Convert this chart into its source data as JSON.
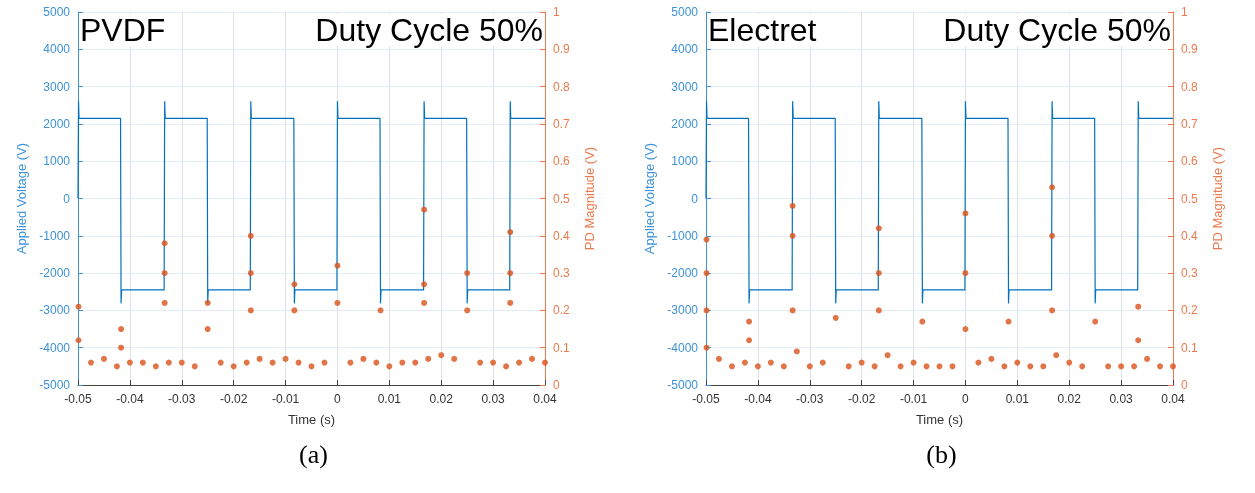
{
  "chart_data": [
    {
      "type": "line",
      "annotations": [
        "PVDF",
        "Duty Cycle 50%",
        "(a)"
      ],
      "xlabel": "Time (s)",
      "ylabel": "Applied Voltage (V)",
      "y2label": "PD Magnitude (V)",
      "xlim": [
        -0.05,
        0.04
      ],
      "xticks": [
        -0.05,
        -0.04,
        -0.03,
        -0.02,
        -0.01,
        0,
        0.01,
        0.02,
        0.03,
        0.04
      ],
      "ylim": [
        -5000,
        5000
      ],
      "yticks": [
        -5000,
        -4000,
        -3000,
        -2000,
        -1000,
        0,
        1000,
        2000,
        3000,
        4000,
        5000
      ],
      "y2lim": [
        0,
        1
      ],
      "y2ticks": [
        0,
        0.1,
        0.2,
        0.3,
        0.4,
        0.5,
        0.6,
        0.7,
        0.8,
        0.9,
        1
      ],
      "grid": true,
      "series": [
        {
          "color": "#0072bd",
          "axis": "y",
          "marker": "none",
          "x": [
            -0.05,
            -0.0499,
            -0.0498,
            -0.0418,
            -0.0417,
            -0.0416,
            -0.0334,
            -0.0333,
            -0.0332,
            -0.0251,
            -0.025,
            -0.0249,
            -0.0168,
            -0.0167,
            -0.0166,
            -0.0084,
            -0.0083,
            -0.0082,
            -0.0001,
            0,
            0.0001,
            0.0082,
            0.0083,
            0.0084,
            0.0166,
            0.0167,
            0.0168,
            0.0249,
            0.025,
            0.0251,
            0.0332,
            0.0333,
            0.0334,
            0.04
          ],
          "values": [
            0,
            2600,
            2150,
            2150,
            -2800,
            -2450,
            -2450,
            2600,
            2150,
            2150,
            -2800,
            -2450,
            -2450,
            2600,
            2150,
            2150,
            -2800,
            -2450,
            -2450,
            2600,
            2150,
            2150,
            -2800,
            -2450,
            -2450,
            2600,
            2150,
            2150,
            -2800,
            -2450,
            -2450,
            2600,
            2150,
            2150
          ]
        },
        {
          "type": "scatter",
          "color": "#d95319",
          "axis": "y2",
          "marker": "circle",
          "x": [
            -0.0499,
            -0.0499,
            -0.0417,
            -0.0417,
            -0.0333,
            -0.0333,
            -0.0333,
            -0.025,
            -0.025,
            -0.0167,
            -0.0167,
            -0.0167,
            -0.0083,
            -0.0083,
            0,
            0,
            0.0083,
            0.0167,
            0.0167,
            0.0167,
            0.025,
            0.025,
            0.0333,
            0.0333,
            0.0333,
            -0.0475,
            -0.045,
            -0.0425,
            -0.04,
            -0.0375,
            -0.035,
            -0.0325,
            -0.03,
            -0.0275,
            -0.0225,
            -0.02,
            -0.0175,
            -0.015,
            -0.0125,
            -0.01,
            -0.0075,
            -0.005,
            -0.0025,
            0.0025,
            0.005,
            0.0075,
            0.01,
            0.0125,
            0.015,
            0.0175,
            0.02,
            0.0225,
            0.0275,
            0.03,
            0.0325,
            0.035,
            0.0375,
            0.04
          ],
          "values": [
            0.21,
            0.12,
            0.15,
            0.1,
            0.38,
            0.3,
            0.22,
            0.22,
            0.15,
            0.4,
            0.3,
            0.2,
            0.27,
            0.2,
            0.32,
            0.22,
            0.2,
            0.47,
            0.27,
            0.22,
            0.3,
            0.2,
            0.41,
            0.3,
            0.22,
            0.06,
            0.07,
            0.05,
            0.06,
            0.06,
            0.05,
            0.06,
            0.06,
            0.05,
            0.06,
            0.05,
            0.06,
            0.07,
            0.06,
            0.07,
            0.06,
            0.05,
            0.06,
            0.06,
            0.07,
            0.06,
            0.05,
            0.06,
            0.06,
            0.07,
            0.08,
            0.07,
            0.06,
            0.06,
            0.05,
            0.06,
            0.07,
            0.06
          ]
        }
      ]
    },
    {
      "type": "line",
      "annotations": [
        "Electret",
        "Duty Cycle 50%",
        "(b)"
      ],
      "xlabel": "Time (s)",
      "ylabel": "Applied Voltage (V)",
      "y2label": "PD Magnitude (V)",
      "xlim": [
        -0.05,
        0.04
      ],
      "xticks": [
        -0.05,
        -0.04,
        -0.03,
        -0.02,
        -0.01,
        0,
        0.01,
        0.02,
        0.03,
        0.04
      ],
      "ylim": [
        -5000,
        5000
      ],
      "yticks": [
        -5000,
        -4000,
        -3000,
        -2000,
        -1000,
        0,
        1000,
        2000,
        3000,
        4000,
        5000
      ],
      "y2lim": [
        0,
        1
      ],
      "y2ticks": [
        0,
        0.1,
        0.2,
        0.3,
        0.4,
        0.5,
        0.6,
        0.7,
        0.8,
        0.9,
        1
      ],
      "grid": true,
      "series": [
        {
          "color": "#0072bd",
          "axis": "y",
          "marker": "none",
          "x": [
            -0.05,
            -0.0499,
            -0.0498,
            -0.0418,
            -0.0417,
            -0.0416,
            -0.0334,
            -0.0333,
            -0.0332,
            -0.0251,
            -0.025,
            -0.0249,
            -0.0168,
            -0.0167,
            -0.0166,
            -0.0084,
            -0.0083,
            -0.0082,
            -0.0001,
            0,
            0.0001,
            0.0082,
            0.0083,
            0.0084,
            0.0166,
            0.0167,
            0.0168,
            0.0249,
            0.025,
            0.0251,
            0.0332,
            0.0333,
            0.0334,
            0.04
          ],
          "values": [
            0,
            2600,
            2150,
            2150,
            -2800,
            -2450,
            -2450,
            2600,
            2150,
            2150,
            -2800,
            -2450,
            -2450,
            2600,
            2150,
            2150,
            -2800,
            -2450,
            -2450,
            2600,
            2150,
            2150,
            -2800,
            -2450,
            -2450,
            2600,
            2150,
            2150,
            -2800,
            -2450,
            -2450,
            2600,
            2150,
            2150
          ]
        },
        {
          "type": "scatter",
          "color": "#d95319",
          "axis": "y2",
          "marker": "circle",
          "x": [
            -0.0499,
            -0.0499,
            -0.0499,
            -0.0499,
            -0.0417,
            -0.0417,
            -0.0333,
            -0.0333,
            -0.0333,
            -0.025,
            -0.0167,
            -0.0167,
            -0.0167,
            -0.0083,
            0,
            0,
            0,
            0.0083,
            0.0167,
            0.0167,
            0.0167,
            0.025,
            0.0333,
            0.0333,
            -0.0475,
            -0.045,
            -0.0425,
            -0.04,
            -0.0375,
            -0.035,
            -0.0325,
            -0.03,
            -0.0275,
            -0.0225,
            -0.02,
            -0.0175,
            -0.015,
            -0.0125,
            -0.01,
            -0.0075,
            -0.005,
            -0.0025,
            0.0025,
            0.005,
            0.0075,
            0.01,
            0.0125,
            0.015,
            0.0175,
            0.02,
            0.0225,
            0.0275,
            0.03,
            0.0325,
            0.035,
            0.0375,
            0.04
          ],
          "values": [
            0.39,
            0.3,
            0.2,
            0.1,
            0.17,
            0.12,
            0.48,
            0.4,
            0.2,
            0.18,
            0.42,
            0.3,
            0.2,
            0.17,
            0.46,
            0.3,
            0.15,
            0.17,
            0.53,
            0.4,
            0.2,
            0.17,
            0.21,
            0.12,
            0.07,
            0.05,
            0.06,
            0.05,
            0.06,
            0.05,
            0.09,
            0.05,
            0.06,
            0.05,
            0.06,
            0.05,
            0.08,
            0.05,
            0.06,
            0.05,
            0.05,
            0.05,
            0.06,
            0.07,
            0.05,
            0.06,
            0.05,
            0.05,
            0.08,
            0.06,
            0.05,
            0.05,
            0.05,
            0.05,
            0.07,
            0.05,
            0.05
          ]
        }
      ]
    }
  ]
}
